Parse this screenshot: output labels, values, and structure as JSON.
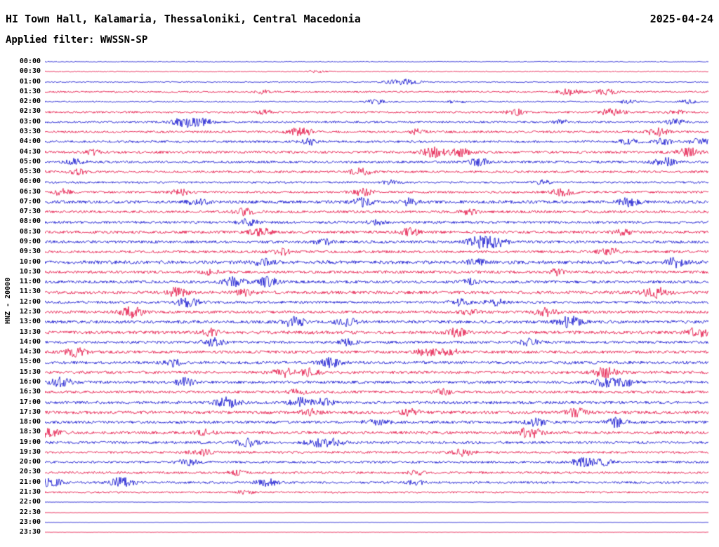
{
  "header": {
    "title": "HI Town Hall, Kalamaria, Thessaloniki, Central Macedonia",
    "date": "2025-04-24",
    "filter_label": "Applied filter: WWSSN-SP"
  },
  "sidebar": {
    "channel_label": "HNZ - 20000"
  },
  "chart_data": {
    "type": "line",
    "subtype": "helicorder-seismogram",
    "station": "HI Town Hall, Kalamaria, Thessaloniki, Central Macedonia",
    "date": "2025-04-24",
    "filter": "WWSSN-SP",
    "channel": "HNZ",
    "scale": 20000,
    "minutes_per_row": 30,
    "legend_position": "none",
    "grid": false,
    "palette": {
      "blue": "#0000cc",
      "red": "#e20039"
    },
    "rows": [
      {
        "time": "00:00",
        "color": "blue",
        "activity": 0.15,
        "bursts": []
      },
      {
        "time": "00:30",
        "color": "red",
        "activity": 0.18,
        "bursts": [
          [
            0.41,
            2
          ]
        ]
      },
      {
        "time": "01:00",
        "color": "blue",
        "activity": 0.2,
        "bursts": [
          [
            0.545,
            5
          ],
          [
            0.52,
            2
          ]
        ]
      },
      {
        "time": "01:30",
        "color": "red",
        "activity": 0.3,
        "bursts": [
          [
            0.79,
            3.5
          ],
          [
            0.845,
            3
          ],
          [
            0.33,
            1.8
          ]
        ]
      },
      {
        "time": "02:00",
        "color": "blue",
        "activity": 0.25,
        "bursts": [
          [
            0.5,
            3
          ],
          [
            0.88,
            2.5
          ],
          [
            0.97,
            2.5
          ],
          [
            0.62,
            2
          ]
        ]
      },
      {
        "time": "02:30",
        "color": "red",
        "activity": 0.35,
        "bursts": [
          [
            0.71,
            3
          ],
          [
            0.855,
            3.5
          ],
          [
            0.95,
            2
          ],
          [
            0.33,
            2
          ]
        ]
      },
      {
        "time": "03:00",
        "color": "blue",
        "activity": 0.35,
        "bursts": [
          [
            0.21,
            4
          ],
          [
            0.235,
            3.5
          ],
          [
            0.78,
            2
          ],
          [
            0.95,
            2.5
          ]
        ]
      },
      {
        "time": "03:30",
        "color": "red",
        "activity": 0.4,
        "bursts": [
          [
            0.385,
            3.5
          ],
          [
            0.92,
            3.5
          ],
          [
            0.56,
            2
          ]
        ]
      },
      {
        "time": "04:00",
        "color": "blue",
        "activity": 0.4,
        "bursts": [
          [
            0.4,
            2.5
          ],
          [
            0.88,
            2.5
          ],
          [
            0.93,
            2.5
          ],
          [
            0.99,
            3
          ]
        ]
      },
      {
        "time": "04:30",
        "color": "red",
        "activity": 0.45,
        "bursts": [
          [
            0.585,
            3.5
          ],
          [
            0.625,
            3
          ],
          [
            0.97,
            3
          ],
          [
            0.07,
            2
          ]
        ]
      },
      {
        "time": "05:00",
        "color": "blue",
        "activity": 0.4,
        "bursts": [
          [
            0.045,
            2.5
          ],
          [
            0.655,
            3
          ],
          [
            0.935,
            3.5
          ]
        ]
      },
      {
        "time": "05:30",
        "color": "red",
        "activity": 0.4,
        "bursts": [
          [
            0.475,
            3
          ],
          [
            0.05,
            2
          ]
        ]
      },
      {
        "time": "06:00",
        "color": "blue",
        "activity": 0.35,
        "bursts": [
          [
            0.52,
            2
          ],
          [
            0.75,
            2
          ]
        ]
      },
      {
        "time": "06:30",
        "color": "red",
        "activity": 0.4,
        "bursts": [
          [
            0.025,
            2.5
          ],
          [
            0.205,
            2.5
          ],
          [
            0.48,
            3
          ],
          [
            0.78,
            3
          ]
        ]
      },
      {
        "time": "07:00",
        "color": "blue",
        "activity": 0.55,
        "bursts": [
          [
            0.23,
            2.5
          ],
          [
            0.48,
            2.5
          ],
          [
            0.55,
            2
          ],
          [
            0.88,
            2.5
          ]
        ]
      },
      {
        "time": "07:30",
        "color": "red",
        "activity": 0.45,
        "bursts": [
          [
            0.3,
            2.5
          ],
          [
            0.64,
            2
          ]
        ]
      },
      {
        "time": "08:00",
        "color": "blue",
        "activity": 0.45,
        "bursts": [
          [
            0.305,
            2.5
          ],
          [
            0.5,
            2
          ]
        ]
      },
      {
        "time": "08:30",
        "color": "red",
        "activity": 0.5,
        "bursts": [
          [
            0.325,
            3
          ],
          [
            0.55,
            2.5
          ],
          [
            0.87,
            2
          ]
        ]
      },
      {
        "time": "09:00",
        "color": "blue",
        "activity": 0.5,
        "bursts": [
          [
            0.655,
            3.5
          ],
          [
            0.68,
            3
          ],
          [
            0.42,
            2
          ]
        ]
      },
      {
        "time": "09:30",
        "color": "red",
        "activity": 0.45,
        "bursts": [
          [
            0.355,
            2.5
          ],
          [
            0.85,
            3
          ]
        ]
      },
      {
        "time": "10:00",
        "color": "blue",
        "activity": 0.6,
        "bursts": [
          [
            0.33,
            2
          ],
          [
            0.95,
            2.5
          ],
          [
            0.65,
            2
          ]
        ]
      },
      {
        "time": "10:30",
        "color": "red",
        "activity": 0.5,
        "bursts": [
          [
            0.25,
            2
          ],
          [
            0.77,
            2
          ]
        ]
      },
      {
        "time": "11:00",
        "color": "blue",
        "activity": 0.5,
        "bursts": [
          [
            0.285,
            3
          ],
          [
            0.335,
            3
          ],
          [
            0.64,
            2
          ]
        ]
      },
      {
        "time": "11:30",
        "color": "red",
        "activity": 0.55,
        "bursts": [
          [
            0.2,
            3
          ],
          [
            0.92,
            3.5
          ],
          [
            0.3,
            2
          ]
        ]
      },
      {
        "time": "12:00",
        "color": "blue",
        "activity": 0.45,
        "bursts": [
          [
            0.215,
            3.5
          ],
          [
            0.625,
            2.5
          ],
          [
            0.68,
            2.5
          ]
        ]
      },
      {
        "time": "12:30",
        "color": "red",
        "activity": 0.5,
        "bursts": [
          [
            0.13,
            3.5
          ],
          [
            0.755,
            3
          ],
          [
            0.64,
            2
          ]
        ]
      },
      {
        "time": "13:00",
        "color": "blue",
        "activity": 0.55,
        "bursts": [
          [
            0.375,
            3
          ],
          [
            0.455,
            2.5
          ],
          [
            0.79,
            3.5
          ]
        ]
      },
      {
        "time": "13:30",
        "color": "red",
        "activity": 0.55,
        "bursts": [
          [
            0.985,
            3
          ],
          [
            0.62,
            2.5
          ],
          [
            0.25,
            2
          ]
        ]
      },
      {
        "time": "14:00",
        "color": "blue",
        "activity": 0.45,
        "bursts": [
          [
            0.255,
            3
          ],
          [
            0.455,
            2.5
          ],
          [
            0.73,
            2.5
          ]
        ]
      },
      {
        "time": "14:30",
        "color": "red",
        "activity": 0.5,
        "bursts": [
          [
            0.045,
            3
          ],
          [
            0.575,
            3
          ],
          [
            0.61,
            2.5
          ]
        ]
      },
      {
        "time": "15:00",
        "color": "blue",
        "activity": 0.5,
        "bursts": [
          [
            0.195,
            2.5
          ],
          [
            0.43,
            3
          ]
        ]
      },
      {
        "time": "15:30",
        "color": "red",
        "activity": 0.5,
        "bursts": [
          [
            0.36,
            3
          ],
          [
            0.845,
            3.5
          ],
          [
            0.4,
            2.5
          ]
        ]
      },
      {
        "time": "16:00",
        "color": "blue",
        "activity": 0.5,
        "bursts": [
          [
            0.025,
            3
          ],
          [
            0.21,
            2.5
          ],
          [
            0.845,
            3
          ],
          [
            0.875,
            2.5
          ]
        ]
      },
      {
        "time": "16:30",
        "color": "red",
        "activity": 0.45,
        "bursts": [
          [
            0.38,
            2
          ],
          [
            0.6,
            2
          ]
        ]
      },
      {
        "time": "17:00",
        "color": "blue",
        "activity": 0.5,
        "bursts": [
          [
            0.275,
            3.5
          ],
          [
            0.385,
            3
          ],
          [
            0.42,
            2.5
          ]
        ]
      },
      {
        "time": "17:30",
        "color": "red",
        "activity": 0.55,
        "bursts": [
          [
            0.55,
            2
          ],
          [
            0.8,
            2.5
          ],
          [
            0.4,
            2
          ]
        ]
      },
      {
        "time": "18:00",
        "color": "blue",
        "activity": 0.5,
        "bursts": [
          [
            0.5,
            3
          ],
          [
            0.74,
            2.5
          ],
          [
            0.86,
            3
          ]
        ]
      },
      {
        "time": "18:30",
        "color": "red",
        "activity": 0.5,
        "bursts": [
          [
            0.005,
            3
          ],
          [
            0.73,
            3.5
          ],
          [
            0.24,
            2
          ]
        ]
      },
      {
        "time": "19:00",
        "color": "blue",
        "activity": 0.45,
        "bursts": [
          [
            0.305,
            3
          ],
          [
            0.41,
            3
          ],
          [
            0.435,
            2.5
          ]
        ]
      },
      {
        "time": "19:30",
        "color": "red",
        "activity": 0.4,
        "bursts": [
          [
            0.235,
            3
          ],
          [
            0.63,
            3
          ]
        ]
      },
      {
        "time": "20:00",
        "color": "blue",
        "activity": 0.4,
        "bursts": [
          [
            0.215,
            3
          ],
          [
            0.81,
            3.5
          ],
          [
            0.84,
            3
          ]
        ]
      },
      {
        "time": "20:30",
        "color": "red",
        "activity": 0.4,
        "bursts": [
          [
            0.29,
            2
          ],
          [
            0.56,
            2
          ]
        ]
      },
      {
        "time": "21:00",
        "color": "blue",
        "activity": 0.4,
        "bursts": [
          [
            0.01,
            3.5
          ],
          [
            0.115,
            4
          ],
          [
            0.335,
            3
          ],
          [
            0.56,
            2
          ]
        ]
      },
      {
        "time": "21:30",
        "color": "red",
        "activity": 0.3,
        "bursts": [
          [
            0.3,
            2
          ]
        ]
      },
      {
        "time": "22:00",
        "color": "blue",
        "activity": 0.07,
        "bursts": []
      },
      {
        "time": "22:30",
        "color": "red",
        "activity": 0.06,
        "bursts": []
      },
      {
        "time": "23:00",
        "color": "blue",
        "activity": 0.06,
        "bursts": []
      },
      {
        "time": "23:30",
        "color": "red",
        "activity": 0.06,
        "bursts": []
      }
    ]
  }
}
